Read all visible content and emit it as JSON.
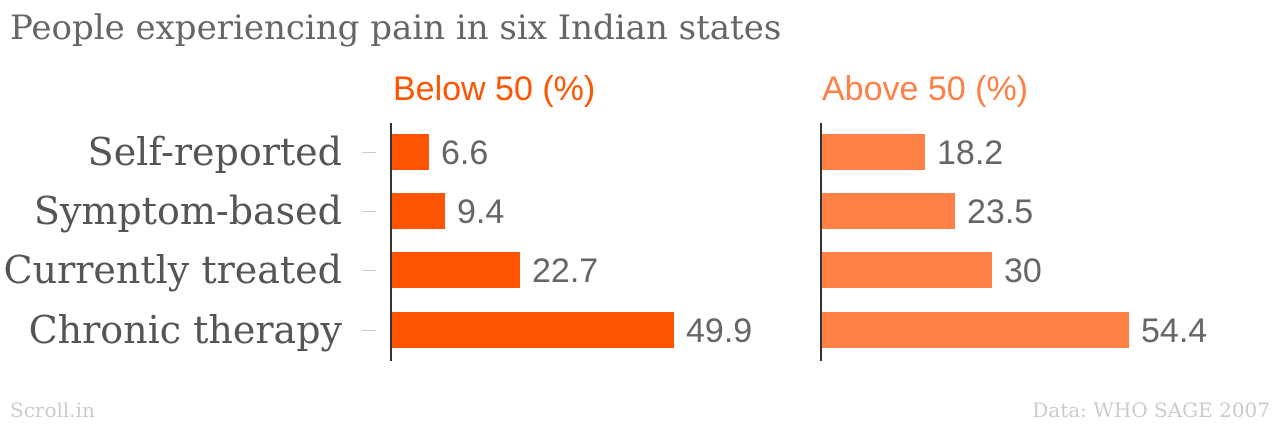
{
  "chart_data": {
    "type": "bar",
    "orientation": "horizontal",
    "title": "People experiencing pain in six Indian states",
    "categories": [
      "Self-reported",
      "Symptom-based",
      "Currently treated",
      "Chronic therapy"
    ],
    "series": [
      {
        "name": "Below 50 (%)",
        "values": [
          6.6,
          9.4,
          22.7,
          49.9
        ],
        "color": "#ff5500"
      },
      {
        "name": "Above 50 (%)",
        "values": [
          18.2,
          23.5,
          30,
          54.4
        ],
        "color": "#ff7f45"
      }
    ],
    "xlim": [
      0,
      60
    ],
    "grid": false,
    "legend": "panel titles above each panel"
  },
  "footer": {
    "left": "Scroll.in",
    "right": "Data: WHO SAGE 2007"
  }
}
